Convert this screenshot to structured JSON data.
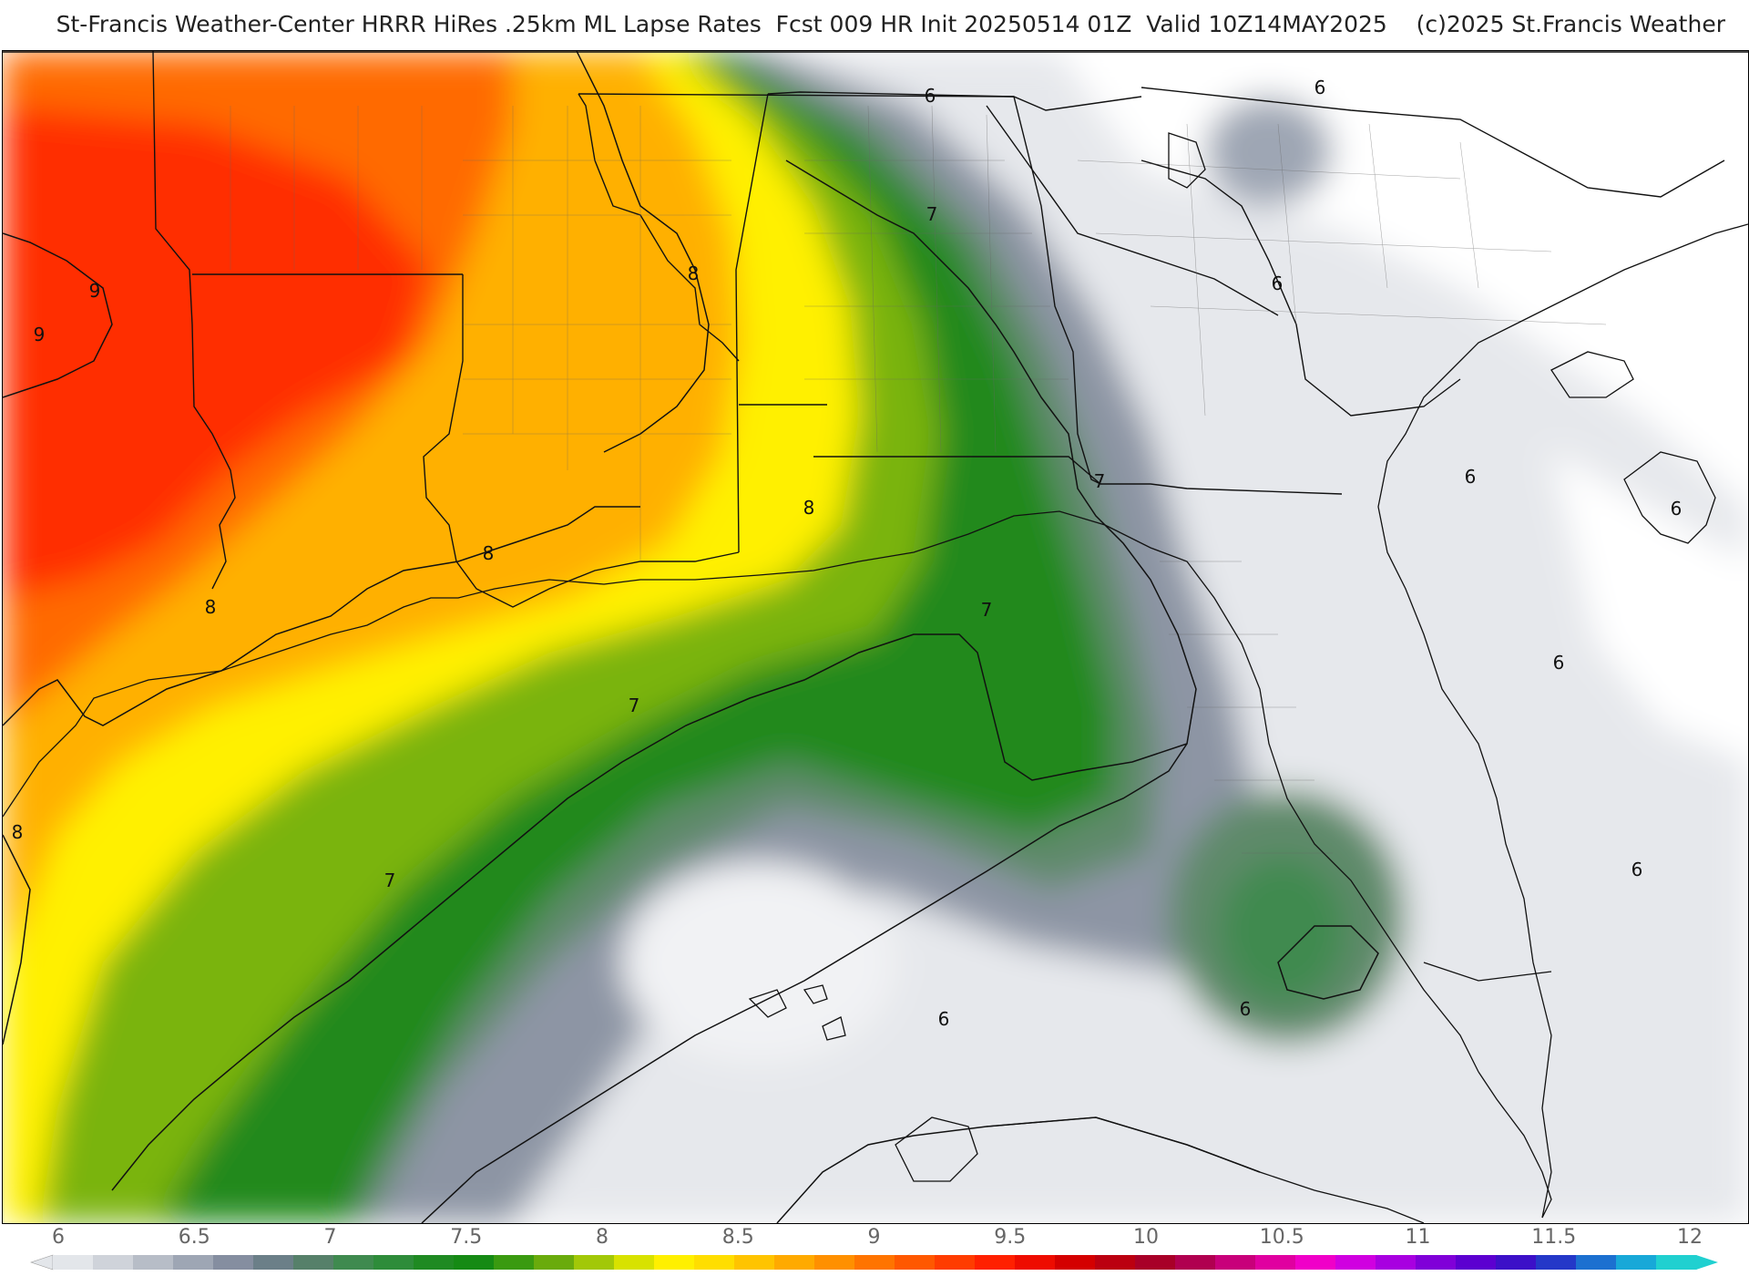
{
  "header": {
    "title": "St-Francis Weather-Center HRRR HiRes .25km ML Lapse Rates  Fcst 009 HR Init 20250514 01Z  Valid 10Z14MAY2025    (c)2025 St.Francis Weather"
  },
  "map": {
    "field": "ML Lapse Rates",
    "contour_labels": [
      {
        "text": "9"
      },
      {
        "text": "9"
      },
      {
        "text": "8"
      },
      {
        "text": "8"
      },
      {
        "text": "8"
      },
      {
        "text": "8"
      },
      {
        "text": "8"
      },
      {
        "text": "7"
      },
      {
        "text": "7"
      },
      {
        "text": "7"
      },
      {
        "text": "7"
      },
      {
        "text": "7"
      },
      {
        "text": "6"
      },
      {
        "text": "6"
      },
      {
        "text": "6"
      },
      {
        "text": "6"
      },
      {
        "text": "6"
      },
      {
        "text": "6"
      },
      {
        "text": "6"
      },
      {
        "text": "6"
      },
      {
        "text": "6"
      }
    ]
  },
  "colorbar": {
    "ticks": [
      "6",
      "6.5",
      "7",
      "7.5",
      "8",
      "8.5",
      "9",
      "9.5",
      "10",
      "10.5",
      "11",
      "11.5",
      "12"
    ],
    "colors": [
      "#e3e6ea",
      "#cfd3da",
      "#b7bdc7",
      "#9ea6b4",
      "#858ea0",
      "#6b7f88",
      "#56806a",
      "#3f8a4f",
      "#2e8c3a",
      "#1f8a22",
      "#158a14",
      "#3a9a10",
      "#6aab0c",
      "#a2c808",
      "#d8e200",
      "#fff000",
      "#ffde00",
      "#ffc400",
      "#ffaa00",
      "#ff9000",
      "#ff7400",
      "#ff5800",
      "#ff3c00",
      "#ff2000",
      "#ee0c00",
      "#d40000",
      "#bb0010",
      "#a80028",
      "#b00050",
      "#c8007a",
      "#e000a0",
      "#f000c8",
      "#d000e0",
      "#a800e0",
      "#8000d8",
      "#5c00d0",
      "#3c10c8",
      "#2438c8",
      "#1c70d0",
      "#18a8d8",
      "#20d0d0"
    ]
  }
}
